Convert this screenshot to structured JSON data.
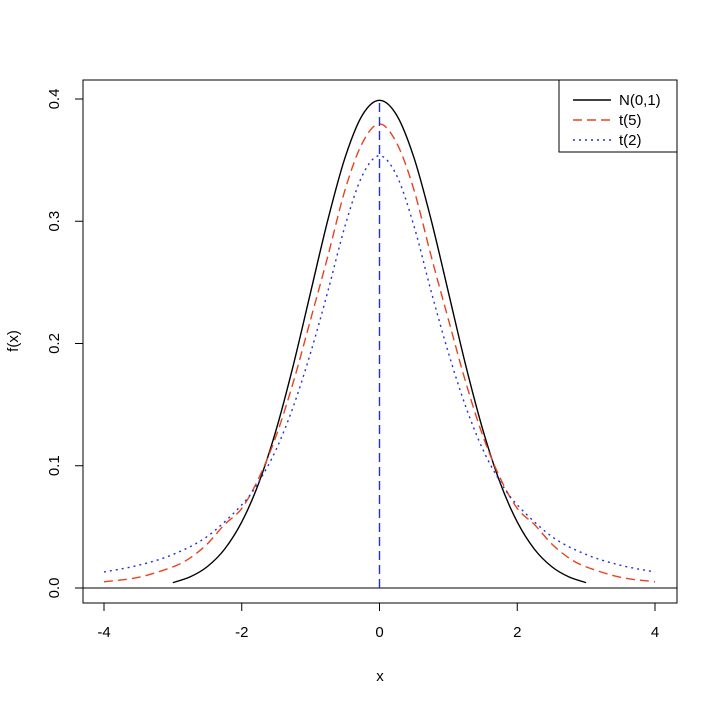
{
  "chart_data": {
    "type": "line",
    "title": "",
    "xlabel": "x",
    "ylabel": "f(x)",
    "xlim": [
      -4,
      4
    ],
    "ylim": [
      0,
      0.4
    ],
    "x_ticks": [
      -4,
      -2,
      0,
      2,
      4
    ],
    "x_tick_labels": [
      "-4",
      "-2",
      "0",
      "2",
      "4"
    ],
    "y_ticks": [
      0,
      0.1,
      0.2,
      0.3,
      0.4
    ],
    "y_tick_labels": [
      "0.0",
      "0.1",
      "0.2",
      "0.3",
      "0.4"
    ],
    "legend_position": "top-right",
    "grid": false,
    "series": [
      {
        "name": "N(0,1)",
        "color": "#000000",
        "style": "solid",
        "x": [
          -3.0,
          -2.75,
          -2.5,
          -2.25,
          -2.0,
          -1.75,
          -1.5,
          -1.25,
          -1.0,
          -0.75,
          -0.5,
          -0.25,
          0.0,
          0.25,
          0.5,
          0.75,
          1.0,
          1.25,
          1.5,
          1.75,
          2.0,
          2.25,
          2.5,
          2.75,
          3.0
        ],
        "y": [
          0.0044,
          0.0091,
          0.0175,
          0.0317,
          0.054,
          0.0863,
          0.1295,
          0.1826,
          0.242,
          0.3011,
          0.3521,
          0.3867,
          0.3989,
          0.3867,
          0.3521,
          0.3011,
          0.242,
          0.1826,
          0.1295,
          0.0863,
          0.054,
          0.0317,
          0.0175,
          0.0091,
          0.0044
        ]
      },
      {
        "name": "t(5)",
        "color": "#e8431f",
        "style": "dashed",
        "x": [
          -4.0,
          -3.5,
          -3.0,
          -2.75,
          -2.5,
          -2.25,
          -2.0,
          -1.75,
          -1.5,
          -1.25,
          -1.0,
          -0.75,
          -0.5,
          -0.25,
          0.0,
          0.25,
          0.5,
          0.75,
          1.0,
          1.25,
          1.5,
          1.75,
          2.0,
          2.25,
          2.5,
          2.75,
          3.0,
          3.5,
          4.0
        ],
        "y": [
          0.0051,
          0.0087,
          0.0173,
          0.0246,
          0.0361,
          0.0519,
          0.0651,
          0.0902,
          0.1245,
          0.1687,
          0.2197,
          0.2714,
          0.3257,
          0.3639,
          0.3796,
          0.3639,
          0.3257,
          0.2714,
          0.2197,
          0.1687,
          0.1245,
          0.0902,
          0.0651,
          0.0519,
          0.0361,
          0.0246,
          0.0173,
          0.0087,
          0.0051
        ]
      },
      {
        "name": "t(2)",
        "color": "#1f2fe0",
        "style": "dotted",
        "x": [
          -4.0,
          -3.5,
          -3.0,
          -2.5,
          -2.0,
          -1.75,
          -1.5,
          -1.25,
          -1.0,
          -0.75,
          -0.5,
          -0.25,
          0.0,
          0.25,
          0.5,
          0.75,
          1.0,
          1.25,
          1.5,
          1.75,
          2.0,
          2.5,
          3.0,
          3.5,
          4.0
        ],
        "y": [
          0.0131,
          0.0186,
          0.0274,
          0.0422,
          0.068,
          0.0872,
          0.1134,
          0.1487,
          0.1925,
          0.2426,
          0.2962,
          0.3373,
          0.3536,
          0.3373,
          0.2962,
          0.2426,
          0.1925,
          0.1487,
          0.1134,
          0.0872,
          0.068,
          0.0422,
          0.0274,
          0.0186,
          0.0131
        ]
      }
    ],
    "reference_line": {
      "x": 0,
      "y_from": 0,
      "y_to": 0.4,
      "color": "#1f2fe0",
      "style": "dashed"
    },
    "baseline": {
      "y": 0,
      "color": "#000000"
    }
  }
}
